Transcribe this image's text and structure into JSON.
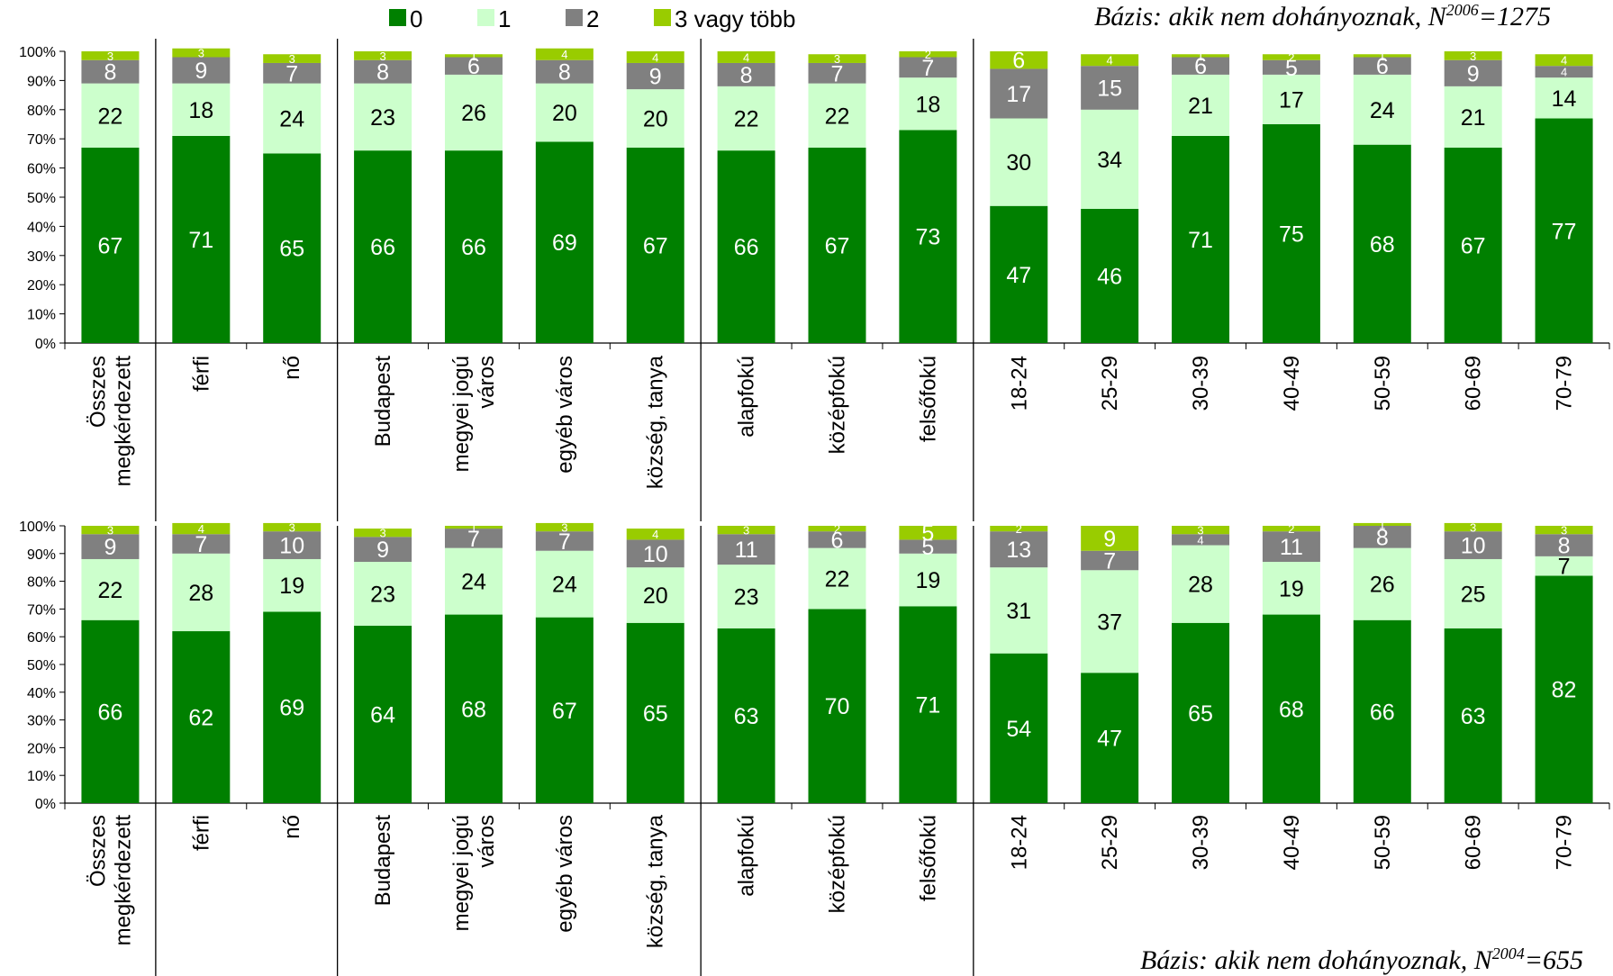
{
  "legend": {
    "items": [
      {
        "label": "0",
        "color": "#008000"
      },
      {
        "label": "1",
        "color": "#ccffcc"
      },
      {
        "label": "2",
        "color": "#808080"
      },
      {
        "label": "3 vagy több",
        "color": "#99cc00"
      }
    ]
  },
  "base_top": {
    "prefix": "Bázis: akik nem dohányoznak, N",
    "sup": "2006",
    "suffix": "=1275"
  },
  "base_bottom": {
    "prefix": "Bázis: akik nem dohányoznak, N",
    "sup": "2004",
    "suffix": "=655"
  },
  "chart_data": [
    {
      "type": "bar",
      "stacked": true,
      "percent": true,
      "categories": [
        "Összes megkérdezett",
        "férfi",
        "nő",
        "Budapest",
        "megyei jogú város",
        "egyéb város",
        "község, tanya",
        "alapfokú",
        "középfokú",
        "felsőfokú",
        "18-24",
        "25-29",
        "30-39",
        "40-49",
        "50-59",
        "60-69",
        "70-79"
      ],
      "series": [
        {
          "name": "0",
          "values": [
            67,
            71,
            65,
            66,
            66,
            69,
            67,
            66,
            67,
            73,
            47,
            46,
            71,
            75,
            68,
            67,
            77
          ]
        },
        {
          "name": "1",
          "values": [
            22,
            18,
            24,
            23,
            26,
            20,
            20,
            22,
            22,
            18,
            30,
            34,
            21,
            17,
            24,
            21,
            14
          ]
        },
        {
          "name": "2",
          "values": [
            8,
            9,
            7,
            8,
            6,
            8,
            9,
            8,
            7,
            7,
            17,
            15,
            6,
            5,
            6,
            9,
            4
          ]
        },
        {
          "name": "3 vagy több",
          "values": [
            3,
            3,
            3,
            3,
            1,
            4,
            4,
            4,
            3,
            2,
            6,
            4,
            1,
            2,
            1,
            3,
            4
          ]
        }
      ],
      "ylim": [
        0,
        100
      ],
      "yticks": [
        "0%",
        "10%",
        "20%",
        "30%",
        "40%",
        "50%",
        "60%",
        "70%",
        "80%",
        "90%",
        "100%"
      ],
      "group_separators_after": [
        0,
        2,
        6,
        9
      ]
    },
    {
      "type": "bar",
      "stacked": true,
      "percent": true,
      "categories": [
        "Összes megkérdezett",
        "férfi",
        "nő",
        "Budapest",
        "megyei jogú város",
        "egyéb város",
        "község, tanya",
        "alapfokú",
        "középfokú",
        "felsőfokú",
        "18-24",
        "25-29",
        "30-39",
        "40-49",
        "50-59",
        "60-69",
        "70-79"
      ],
      "series": [
        {
          "name": "0",
          "values": [
            66,
            62,
            69,
            64,
            68,
            67,
            65,
            63,
            70,
            71,
            54,
            47,
            65,
            68,
            66,
            63,
            82
          ]
        },
        {
          "name": "1",
          "values": [
            22,
            28,
            19,
            23,
            24,
            24,
            20,
            23,
            22,
            19,
            31,
            37,
            28,
            19,
            26,
            25,
            7
          ]
        },
        {
          "name": "2",
          "values": [
            9,
            7,
            10,
            9,
            7,
            7,
            10,
            11,
            6,
            5,
            13,
            7,
            4,
            11,
            8,
            10,
            8
          ]
        },
        {
          "name": "3 vagy több",
          "values": [
            3,
            4,
            3,
            3,
            1,
            3,
            4,
            3,
            2,
            5,
            2,
            9,
            3,
            2,
            1,
            3,
            3
          ]
        }
      ],
      "ylim": [
        0,
        100
      ],
      "yticks": [
        "0%",
        "10%",
        "20%",
        "30%",
        "40%",
        "50%",
        "60%",
        "70%",
        "80%",
        "90%",
        "100%"
      ],
      "group_separators_after": [
        0,
        2,
        6,
        9
      ]
    }
  ]
}
